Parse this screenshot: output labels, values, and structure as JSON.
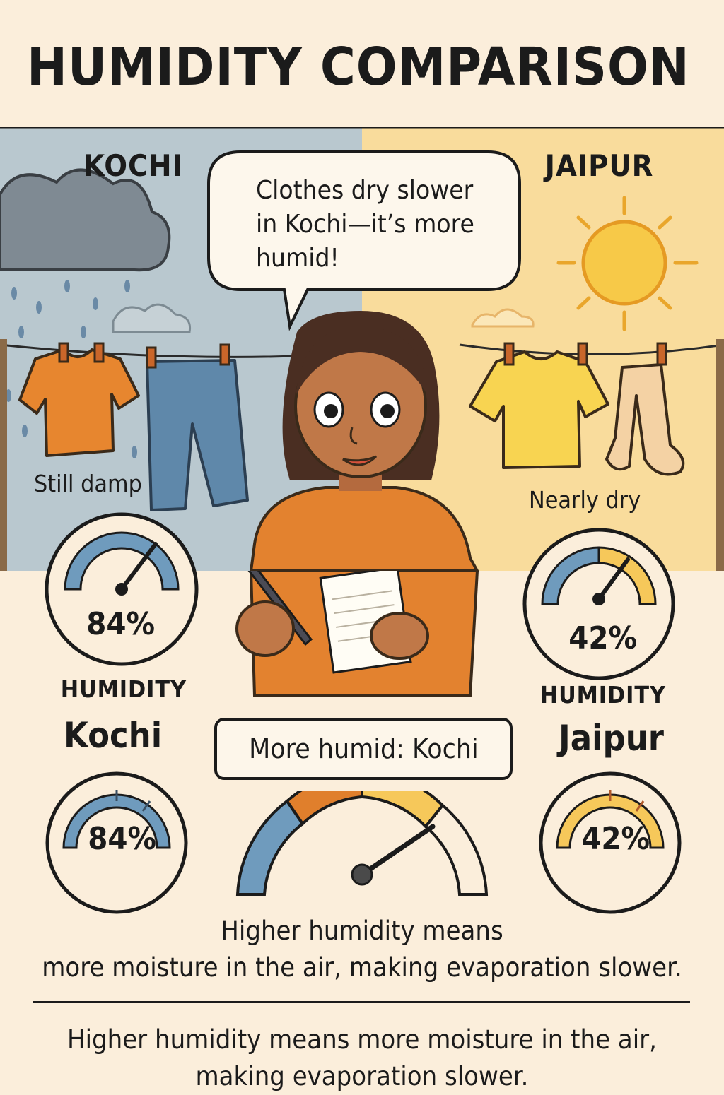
{
  "title": "HUMIDITY COMPARISON",
  "speech_bubble": "Clothes dry slower in Kochi—it’s more humid!",
  "left_panel": {
    "city_label": "KOCHI",
    "clothes_note": "Still damp",
    "gauge_value": "84%",
    "gauge_caption": "HUMIDITY",
    "city_name": "Kochi",
    "small_gauge_value": "84%",
    "humidity_level": 0.84
  },
  "right_panel": {
    "city_label": "JAIPUR",
    "clothes_note": "Nearly dry",
    "gauge_value": "42%",
    "gauge_caption": "HUMIDITY",
    "city_name": "Jaipur",
    "small_gauge_value": "42%",
    "humidity_level": 0.42
  },
  "verdict": "More humid: Kochi",
  "caption_top": {
    "line1": "Higher humidity means",
    "line2": "more moisture in the air, making evaporation slower."
  },
  "caption_bottom": {
    "line1": "Higher humidity means more moisture in the air,",
    "line2": "making evaporation slower."
  },
  "colors": {
    "background": "#fbeedb",
    "kochi_sky": "#b9c8cf",
    "jaipur_sky": "#f9dc9c",
    "humid_blue": "#6f9bbd",
    "dry_yellow": "#f6c85a",
    "orange": "#e07f2c"
  },
  "icons": [
    "rain-cloud-icon",
    "sun-icon",
    "clothesline-icon",
    "humidity-gauge-icon",
    "girl-illustration"
  ]
}
